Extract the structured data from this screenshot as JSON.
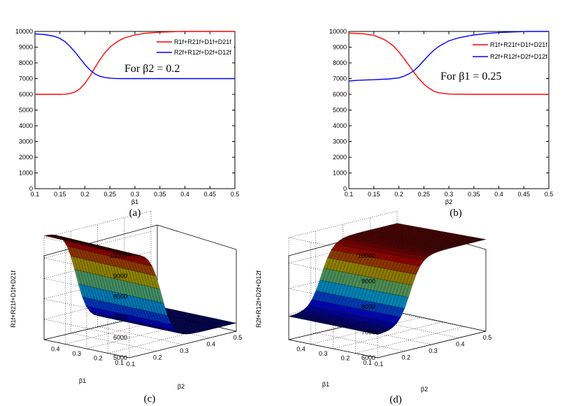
{
  "chart_data": [
    {
      "id": "a",
      "type": "line",
      "caption": "(a)",
      "xlabel": "β1",
      "ylabel": "",
      "xlim": [
        0.1,
        0.5
      ],
      "ylim": [
        0,
        10000
      ],
      "xticks": [
        "0.1",
        "0.15",
        "0.2",
        "0.25",
        "0.3",
        "0.35",
        "0.4",
        "0.45",
        "0.5"
      ],
      "yticks": [
        "0",
        "1000",
        "2000",
        "3000",
        "4000",
        "5000",
        "6000",
        "7000",
        "8000",
        "9000",
        "10000"
      ],
      "annotation": "For β2 = 0.2",
      "legend": [
        "R1f+R21f+D1f+D21f",
        "R2f+R12f+D2f+D12f"
      ],
      "series": [
        {
          "name": "R1f+R21f+D1f+D21f",
          "color": "#ff0000",
          "x": [
            0.1,
            0.15,
            0.16,
            0.17,
            0.18,
            0.19,
            0.2,
            0.21,
            0.22,
            0.23,
            0.24,
            0.25,
            0.26,
            0.27,
            0.28,
            0.3,
            0.32,
            0.35,
            0.38,
            0.4,
            0.44,
            0.5
          ],
          "y": [
            6000,
            6000,
            6010,
            6050,
            6150,
            6350,
            6700,
            7150,
            7700,
            8200,
            8650,
            9000,
            9250,
            9450,
            9600,
            9780,
            9880,
            9950,
            9985,
            10000,
            10000,
            10000
          ]
        },
        {
          "name": "R2f+R12f+D2f+D12f",
          "color": "#0000ff",
          "x": [
            0.1,
            0.12,
            0.14,
            0.15,
            0.16,
            0.17,
            0.18,
            0.19,
            0.2,
            0.21,
            0.22,
            0.23,
            0.24,
            0.25,
            0.26,
            0.27,
            0.3,
            0.35,
            0.4,
            0.5
          ],
          "y": [
            9850,
            9800,
            9680,
            9550,
            9350,
            9050,
            8700,
            8300,
            7900,
            7550,
            7300,
            7150,
            7070,
            7030,
            7010,
            7000,
            7000,
            7000,
            7000,
            7000
          ]
        }
      ]
    },
    {
      "id": "b",
      "type": "line",
      "caption": "(b)",
      "xlabel": "β2",
      "ylabel": "",
      "xlim": [
        0.1,
        0.5
      ],
      "ylim": [
        0,
        10000
      ],
      "xticks": [
        "0.1",
        "0.15",
        "0.2",
        "0.25",
        "0.3",
        "0.35",
        "0.4",
        "0.45",
        "0.5"
      ],
      "yticks": [
        "0",
        "1000",
        "2000",
        "3000",
        "4000",
        "5000",
        "6000",
        "7000",
        "8000",
        "9000",
        "10000"
      ],
      "annotation": "For β1 = 0.25",
      "legend": [
        "R1f+R21f+D1f+D21f",
        "R2f+R12f+D2f+D12f"
      ],
      "series": [
        {
          "name": "R1f+R21f+D1f+D21f",
          "color": "#ff0000",
          "x": [
            0.1,
            0.13,
            0.15,
            0.17,
            0.18,
            0.19,
            0.2,
            0.21,
            0.22,
            0.23,
            0.24,
            0.25,
            0.26,
            0.27,
            0.28,
            0.3,
            0.35,
            0.4,
            0.5
          ],
          "y": [
            9900,
            9850,
            9750,
            9500,
            9300,
            9050,
            8700,
            8300,
            7850,
            7400,
            7000,
            6650,
            6400,
            6200,
            6100,
            6020,
            6000,
            6000,
            6000
          ]
        },
        {
          "name": "R2f+R12f+D2f+D12f",
          "color": "#0000ff",
          "x": [
            0.1,
            0.12,
            0.15,
            0.18,
            0.2,
            0.21,
            0.22,
            0.23,
            0.24,
            0.25,
            0.26,
            0.27,
            0.28,
            0.3,
            0.32,
            0.35,
            0.38,
            0.4,
            0.44,
            0.46,
            0.5
          ],
          "y": [
            6850,
            6900,
            6930,
            6980,
            7050,
            7150,
            7300,
            7500,
            7800,
            8150,
            8500,
            8800,
            9050,
            9400,
            9600,
            9780,
            9880,
            9930,
            9980,
            10000,
            10000
          ]
        }
      ]
    },
    {
      "id": "c",
      "type": "surface",
      "caption": "(c)",
      "xlabel": "β2",
      "ylabel": "β1",
      "zlabel": "R1f+R21f+D1f+D21f",
      "zlim": [
        5000,
        10000
      ],
      "zticks": [
        "5000",
        "6000",
        "7000",
        "8000",
        "9000",
        "10000"
      ],
      "xticks": [
        "0.1",
        "0.2",
        "0.3",
        "0.4",
        "0.5"
      ],
      "yticks": [
        "0.1",
        "0.2",
        "0.3",
        "0.4"
      ],
      "surface": {
        "high": 10000,
        "low": 5400,
        "transition_beta2": 0.22
      }
    },
    {
      "id": "d",
      "type": "surface",
      "caption": "(d)",
      "xlabel": "β2",
      "ylabel": "β1",
      "zlabel": "R2f+R12f+D2f+D12f",
      "zlim": [
        6000,
        10000
      ],
      "zticks": [
        "6000",
        "7000",
        "8000",
        "9000",
        "10000"
      ],
      "xticks": [
        "0.1",
        "0.2",
        "0.3",
        "0.4",
        "0.5"
      ],
      "yticks": [
        "0.1",
        "0.2",
        "0.3",
        "0.4"
      ],
      "surface": {
        "high": 9600,
        "low": 6900,
        "transition_beta2": 0.22
      }
    }
  ]
}
